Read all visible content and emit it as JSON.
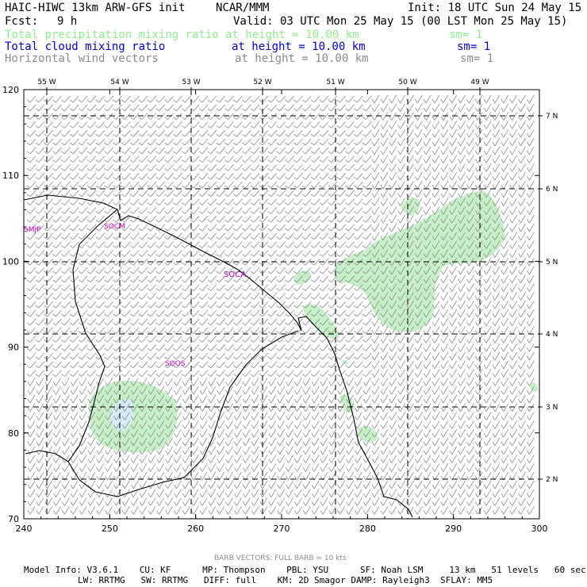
{
  "header": {
    "title_left": "HAIC-HIWC 13km ARW-GFS init",
    "title_org": "NCAR/MMM",
    "init": "Init: 18 UTC Sun 24 May 15",
    "fcst_label": "Fcst:",
    "fcst_value": "9 h",
    "valid": "Valid: 03 UTC Mon 25 May 15 (00 LST Mon 25 May 15)",
    "fields": [
      {
        "name": "Total precipitation mixing ratio",
        "level": "at height = 10.00 km",
        "sm": "sm= 1",
        "color": "#90ee90"
      },
      {
        "name": "Total cloud mixing ratio",
        "level": "at height = 10.00 km",
        "sm": "sm= 1",
        "color": "#0000cd"
      },
      {
        "name": "Horizontal wind vectors",
        "level": "at height = 10.00 km",
        "sm": "sm= 1",
        "color": "#8c8c8c"
      }
    ]
  },
  "map": {
    "x_ticks": [
      "240",
      "250",
      "260",
      "270",
      "280",
      "290",
      "300"
    ],
    "y_ticks": [
      "70",
      "80",
      "90",
      "100",
      "110",
      "120"
    ],
    "lon_labels": [
      "55 W",
      "54 W",
      "53 W",
      "52 W",
      "51 W",
      "50 W",
      "49 W"
    ],
    "lat_labels": [
      "2 N",
      "3 N",
      "4 N",
      "5 N",
      "6 N",
      "7 N"
    ],
    "stations": [
      "SMJP",
      "SOCM",
      "SOCA",
      "SOOS"
    ],
    "colors": {
      "precip": "#c8f0c8",
      "cloud": "#d6ecf8",
      "barb": "#8c8c8c",
      "coast": "#000000",
      "station": "#cc00cc"
    },
    "legend": "BARB VECTORS:  FULL BARB = 10 kts"
  },
  "footer": {
    "line1": "Model Info: V3.6.1    CU: KF      MP: Thompson    PBL: YSU      SF: Noah LSM     13 km   51 levels   60 sec",
    "line2": "LW: RRTMG   SW: RRTMG   DIFF: full    KM: 2D Smagor DAMP: Rayleigh3  SFLAY: MM5"
  }
}
